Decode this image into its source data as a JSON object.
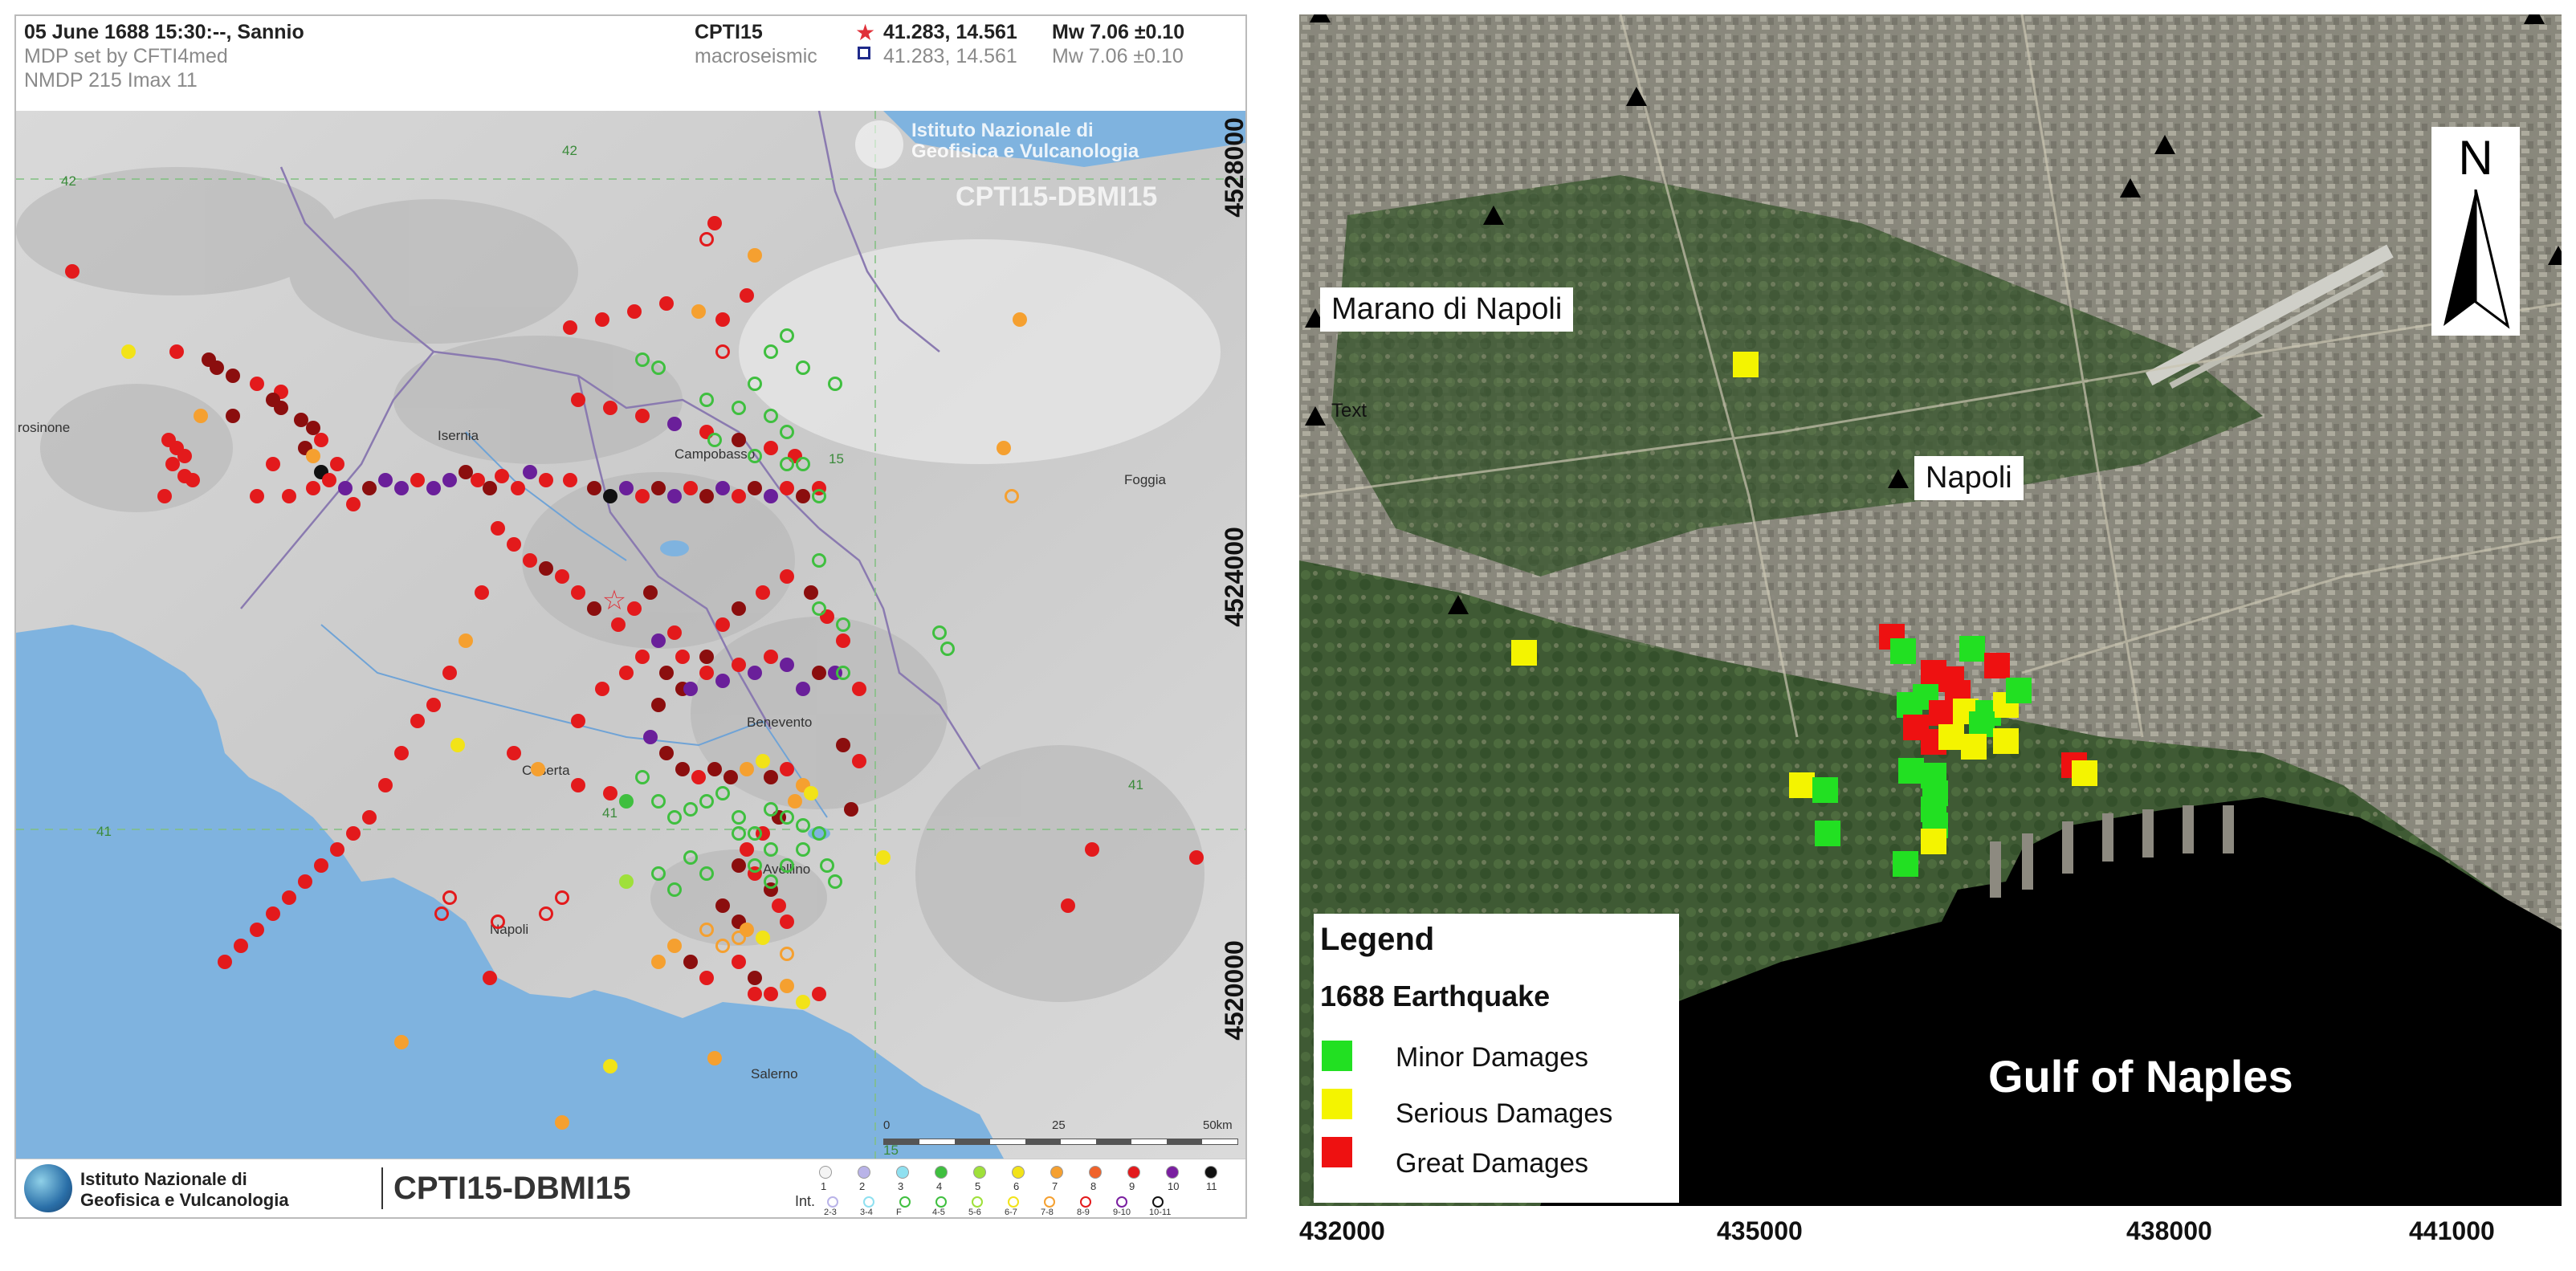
{
  "left_panel": {
    "header": {
      "event": "05 June 1688  15:30:--,  Sannio",
      "mdp_set": "MDP set by CFTI4med",
      "nmdp": "NMDP 215    Imax 11",
      "catalog": "CPTI15",
      "catalog_sub": "macroseismic",
      "coord_epicenter": "41.283, 14.561",
      "coord_macro": "41.283, 14.561",
      "mw_epicenter": "Mw 7.06 ±0.10",
      "mw_macro": "Mw 7.06 ±0.10",
      "colors": {
        "epicenter_star": "#e0313a",
        "macro_square": "#1f2a8a"
      }
    },
    "watermark": {
      "line1": "Istituto Nazionale di",
      "line2": "Geofisica e Vulcanologia",
      "line3": "CPTI15-DBMI15"
    },
    "place_labels": [
      "Isernia",
      "Campobasso",
      "Foggia",
      "Benevento",
      "Caserta",
      "Napoli",
      "Salerno",
      "Avellino",
      "rosinone"
    ],
    "grid_labels": [
      "42",
      "42",
      "15",
      "41",
      "41",
      "41",
      "15"
    ],
    "scale": {
      "zero": "0",
      "mid": "25",
      "end": "50km"
    },
    "footer": {
      "org_line1": "Istituto Nazionale di",
      "org_line2": "Geofisica e Vulcanologia",
      "product": "CPTI15-DBMI15",
      "int_label": "Int.",
      "intensity_classes": [
        {
          "label": "1",
          "color": "#f4f4f4"
        },
        {
          "label": "2",
          "color": "#b9b3e8"
        },
        {
          "label": "3",
          "color": "#8fe0f0"
        },
        {
          "label": "4",
          "color": "#3fbf3f"
        },
        {
          "label": "5",
          "color": "#9fe03a"
        },
        {
          "label": "6",
          "color": "#f2e318"
        },
        {
          "label": "7",
          "color": "#f5a030"
        },
        {
          "label": "8",
          "color": "#f0622a"
        },
        {
          "label": "9",
          "color": "#e31a1c"
        },
        {
          "label": "10",
          "color": "#7a1fa0"
        },
        {
          "label": "11",
          "color": "#111111"
        }
      ],
      "intermediate_classes": [
        "2-3",
        "3-4",
        "F",
        "4-5",
        "5-6",
        "6-7",
        "7-8",
        "8-9",
        "9-10",
        "10-11"
      ]
    }
  },
  "right_panel": {
    "place_labels": {
      "marano": "Marano di Napoli",
      "text": "Text",
      "napoli": "Napoli",
      "gulf": "Gulf of Naples"
    },
    "north_arrow": "N",
    "y_ticks": [
      "4528000",
      "4524000",
      "4520000"
    ],
    "x_ticks": [
      "432000",
      "435000",
      "438000",
      "441000"
    ],
    "legend": {
      "title": "Legend",
      "subtitle": "1688 Earthquake",
      "items": [
        {
          "label": "Minor Damages",
          "color": "#22e022"
        },
        {
          "label": "Serious Damages",
          "color": "#f4f400"
        },
        {
          "label": "Great Damages",
          "color": "#ee1111"
        }
      ]
    }
  }
}
